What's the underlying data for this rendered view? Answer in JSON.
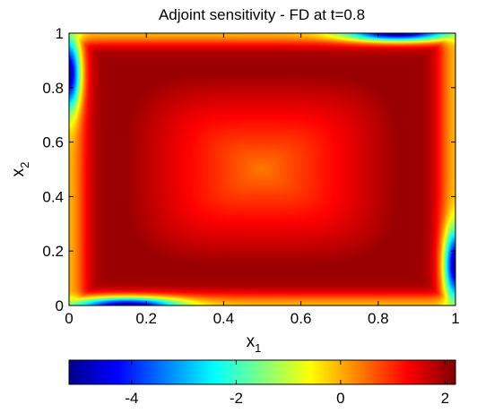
{
  "chart_data": {
    "type": "heatmap",
    "title": "Adjoint sensitivity - FD at t=0.8",
    "xlabel": {
      "base": "x",
      "sub": "1"
    },
    "ylabel": {
      "base": "x",
      "sub": "2"
    },
    "xlim": [
      0,
      1
    ],
    "ylim": [
      0,
      1
    ],
    "xticks": [
      0,
      0.2,
      0.4,
      0.6,
      0.8,
      1
    ],
    "xtick_labels": [
      "0",
      "0.2",
      "0.4",
      "0.6",
      "0.8",
      "1"
    ],
    "yticks": [
      0,
      0.2,
      0.4,
      0.6,
      0.8,
      1
    ],
    "ytick_labels": [
      "0",
      "0.2",
      "0.4",
      "0.6",
      "0.8",
      "1"
    ],
    "colormap": "jet",
    "colorbar": {
      "location": "bottom",
      "clim": [
        -5.2,
        2.2
      ],
      "ticks": [
        -4,
        -2,
        0,
        2
      ],
      "tick_labels": [
        "-4",
        "-2",
        "0",
        "2"
      ]
    },
    "field_description": {
      "center_value": 0.4,
      "ring_value": 2.0,
      "ring_extent": 0.35,
      "corner_edge_minimum": -5.0,
      "corner_edges": [
        "left-top",
        "top-right",
        "right-bottom",
        "bottom-left"
      ]
    },
    "colors": {
      "jet_stops": [
        "#00008f",
        "#0000ff",
        "#00ffff",
        "#ffff00",
        "#ff0000",
        "#800000"
      ]
    }
  }
}
